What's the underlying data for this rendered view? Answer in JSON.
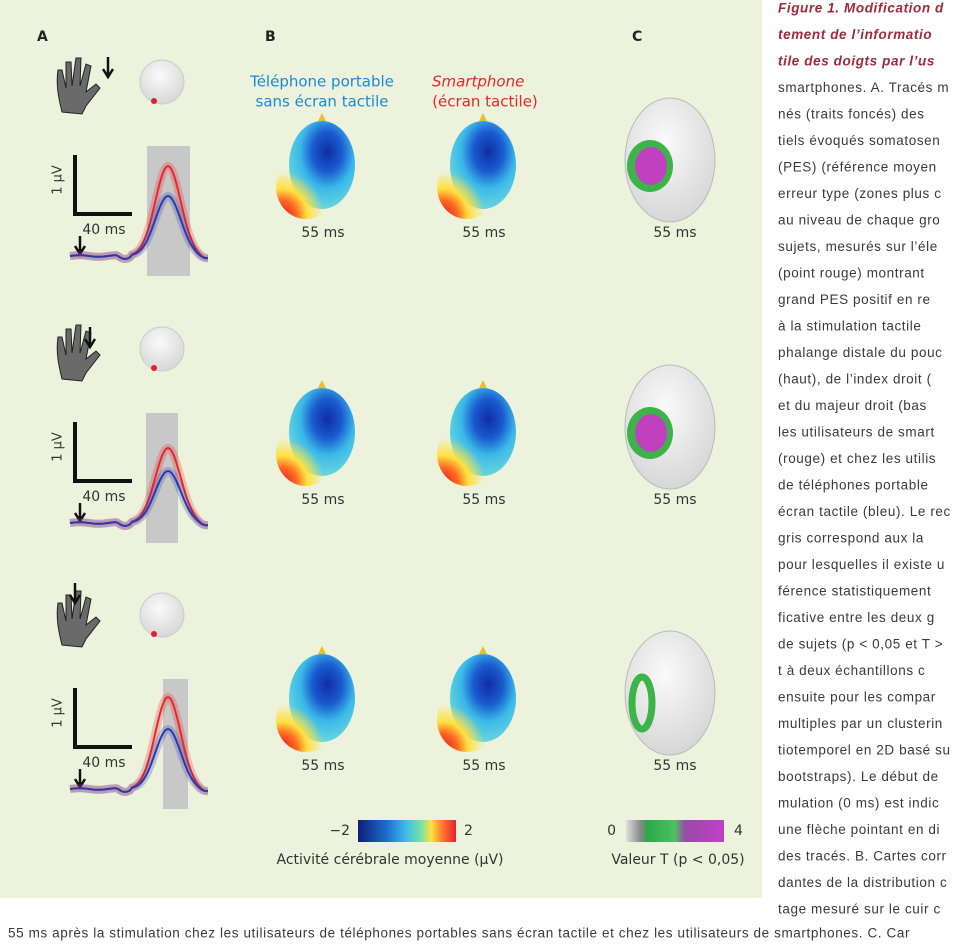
{
  "panel_labels": [
    "A",
    "B",
    "C"
  ],
  "legend": {
    "mobile": [
      "Téléphone portable",
      "sans écran tactile"
    ],
    "smartphone": [
      "Smartphone",
      "(écran tactile)"
    ]
  },
  "rows": [
    {
      "amplitude_scale": "1 µV",
      "time_scale": "40 ms",
      "latencies": [
        "55 ms",
        "55 ms",
        "55 ms"
      ]
    },
    {
      "amplitude_scale": "1 µV",
      "time_scale": "40 ms",
      "latencies": [
        "55 ms",
        "55 ms",
        "55 ms"
      ]
    },
    {
      "amplitude_scale": "1 µV",
      "time_scale": "40 ms",
      "latencies": [
        "55 ms",
        "55 ms",
        "55 ms"
      ]
    }
  ],
  "colorbars": [
    {
      "min": "−2",
      "max": "2",
      "label": "Activité cérébrale moyenne (µV)"
    },
    {
      "min": "0",
      "max": "4",
      "label": "Valeur T (p < 0,05)"
    }
  ],
  "caption": {
    "lines": [
      "Figure 1. Modification d",
      "tement de l’informatio",
      "tile des doigts par l’us",
      "smartphones. A. Tracés m",
      "nés (traits foncés) des",
      "tiels évoqués somatosen",
      "(PES) (référence moyen",
      "erreur type (zones plus c",
      "au niveau de chaque gro",
      "sujets, mesurés sur l’éle",
      "(point rouge) montrant",
      "grand PES positif en re",
      "à la stimulation tactile",
      "phalange distale du pouc",
      "(haut), de l’index droit (",
      "et du majeur droit (bas",
      "les utilisateurs de smart",
      "(rouge) et chez les utilis",
      "de téléphones portable",
      "écran tactile (bleu). Le rec",
      "gris correspond aux la",
      "pour lesquelles il existe u",
      "férence statistiquement",
      "ficative entre les deux g",
      "de sujets (p < 0,05 et T >",
      "t à deux échantillons c",
      "ensuite pour les compar",
      "multiples par un clusterin",
      "tiotemporel en 2D basé su",
      "bootstraps). Le début de",
      "mulation (0 ms) est indic",
      "une flèche pointant en di",
      "des tracés. B. Cartes corr",
      "dantes de la distribution c",
      "tage mesuré sur le cuir c"
    ],
    "bottom": "55 ms après la stimulation chez les utilisateurs de téléphones portables sans écran tactile et chez les utilisateurs de smartphones. C. Car"
  }
}
